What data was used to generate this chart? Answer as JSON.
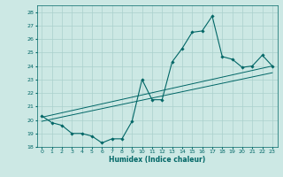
{
  "title": "",
  "xlabel": "Humidex (Indice chaleur)",
  "ylabel": "",
  "bg_color": "#cce8e4",
  "grid_color": "#aad0cc",
  "line_color": "#006666",
  "xlim": [
    -0.5,
    23.5
  ],
  "ylim": [
    18,
    28.5
  ],
  "xticks": [
    0,
    1,
    2,
    3,
    4,
    5,
    6,
    7,
    8,
    9,
    10,
    11,
    12,
    13,
    14,
    15,
    16,
    17,
    18,
    19,
    20,
    21,
    22,
    23
  ],
  "yticks": [
    18,
    19,
    20,
    21,
    22,
    23,
    24,
    25,
    26,
    27,
    28
  ],
  "main_x": [
    0,
    1,
    2,
    3,
    4,
    5,
    6,
    7,
    8,
    9,
    10,
    11,
    12,
    13,
    14,
    15,
    16,
    17,
    18,
    19,
    20,
    21,
    22,
    23
  ],
  "main_y": [
    20.3,
    19.8,
    19.6,
    19.0,
    19.0,
    18.8,
    18.3,
    18.6,
    18.6,
    19.9,
    23.0,
    21.5,
    21.5,
    24.3,
    25.3,
    26.5,
    26.6,
    27.7,
    24.7,
    24.5,
    23.9,
    24.0,
    24.8,
    24.0
  ],
  "line2_x": [
    0,
    23
  ],
  "line2_y": [
    19.9,
    23.5
  ],
  "line3_x": [
    0,
    23
  ],
  "line3_y": [
    20.2,
    24.0
  ]
}
